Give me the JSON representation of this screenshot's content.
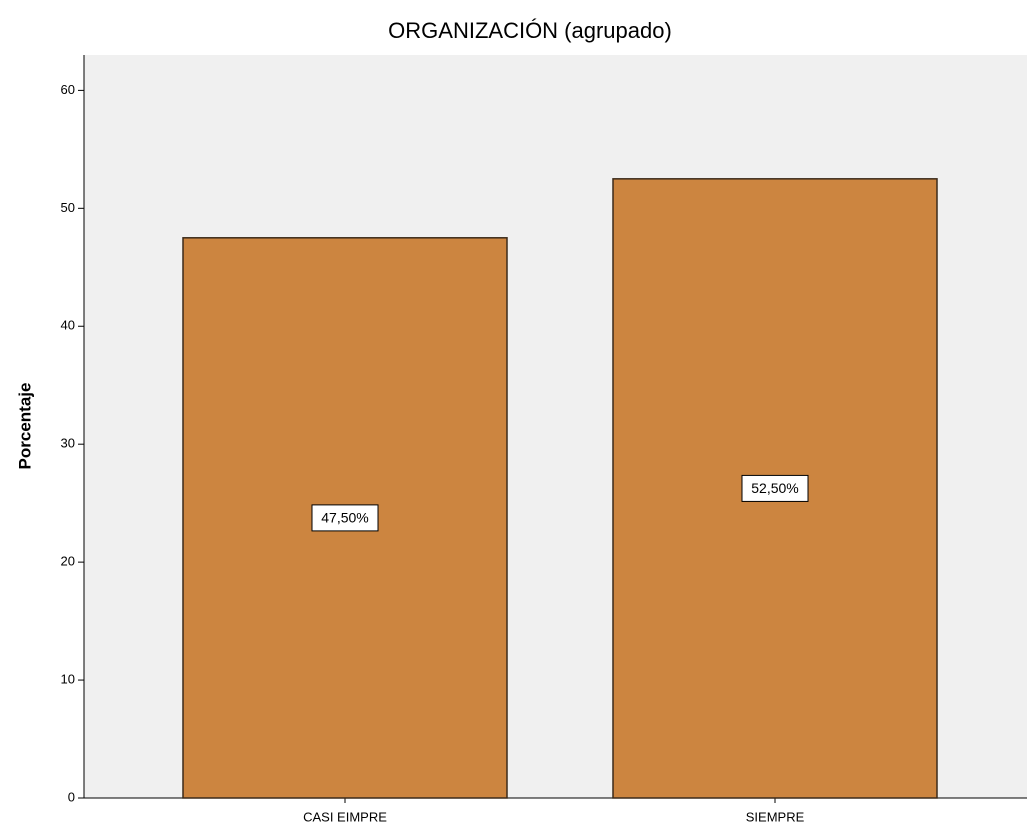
{
  "chart_data": {
    "type": "bar",
    "title": "ORGANIZACIÓN (agrupado)",
    "y_label": "Porcentaje",
    "categories": [
      "CASI EIMPRE",
      "SIEMPRE"
    ],
    "values": [
      47.5,
      52.5
    ],
    "value_labels": [
      "47,50%",
      "52,50%"
    ],
    "color": "#cc8540",
    "ylim": [
      0,
      63
    ],
    "yticks": [
      0,
      10,
      20,
      30,
      40,
      50,
      60
    ],
    "grid": false
  }
}
